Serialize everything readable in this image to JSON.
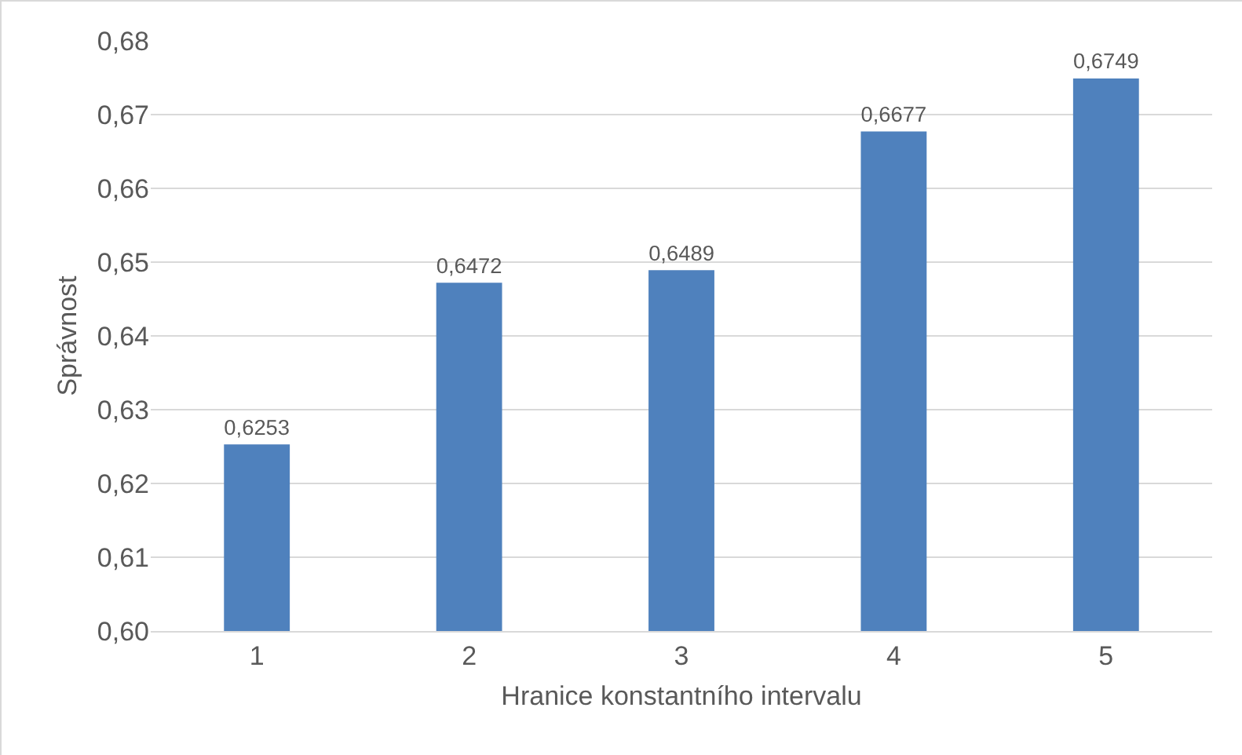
{
  "chart_data": {
    "type": "bar",
    "xlabel": "Hranice konstantního intervalu",
    "ylabel": "Správnost",
    "categories": [
      "1",
      "2",
      "3",
      "4",
      "5"
    ],
    "values": [
      0.6253,
      0.6472,
      0.6489,
      0.6677,
      0.6749
    ],
    "value_labels": [
      "0,6253",
      "0,6472",
      "0,6489",
      "0,6677",
      "0,6749"
    ],
    "color": "#4f81bd",
    "ylim": [
      0.6,
      0.68
    ],
    "yticks": [
      {
        "value": 0.6,
        "label": "0,60"
      },
      {
        "value": 0.61,
        "label": "0,61"
      },
      {
        "value": 0.62,
        "label": "0,62"
      },
      {
        "value": 0.63,
        "label": "0,63"
      },
      {
        "value": 0.64,
        "label": "0,64"
      },
      {
        "value": 0.65,
        "label": "0,65"
      },
      {
        "value": 0.66,
        "label": "0,66"
      },
      {
        "value": 0.67,
        "label": "0,67"
      },
      {
        "value": 0.68,
        "label": "0,68"
      }
    ],
    "grid": "y"
  }
}
